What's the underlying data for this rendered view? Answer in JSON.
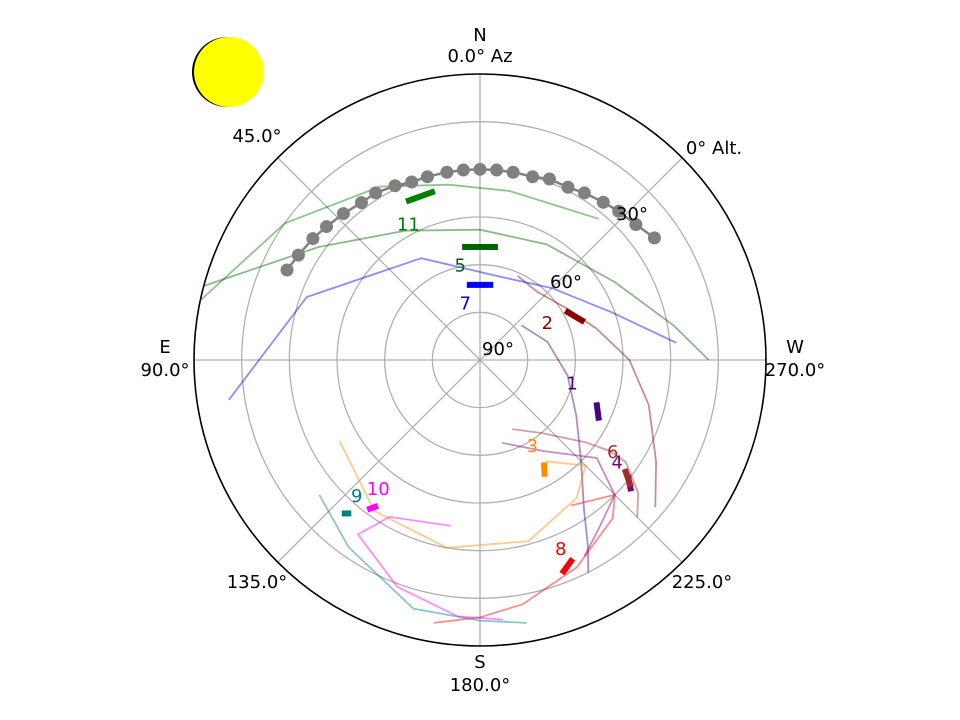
{
  "chart_data": {
    "type": "polar-skyplot",
    "title": "",
    "direction_labels": {
      "N": "N",
      "E": "E",
      "S": "S",
      "W": "W",
      "n_deg": "0.0° Az",
      "e_deg": "90.0°",
      "s_deg": "180.0°",
      "w_deg": "270.0°"
    },
    "azimuth_labels": [
      {
        "az": 45,
        "text": "45.0°"
      },
      {
        "az": 135,
        "text": "135.0°"
      },
      {
        "az": 225,
        "text": "225.0°"
      }
    ],
    "altitude_labels": [
      {
        "alt": 0,
        "text": "0° Alt."
      },
      {
        "alt": 30,
        "text": "30°"
      },
      {
        "alt": 60,
        "text": "60°"
      },
      {
        "alt": 90,
        "text": "90°"
      }
    ],
    "altitude_rings": [
      15,
      30,
      45,
      60,
      75
    ],
    "azimuth_spokes": [
      0,
      45,
      90,
      135,
      180,
      225,
      270,
      315
    ],
    "sun_color": "#ffff00",
    "moon_track": {
      "color": "#808080",
      "points": [
        [
          305,
          23
        ],
        [
          311,
          25
        ],
        [
          317,
          26
        ],
        [
          322,
          27
        ],
        [
          328,
          28
        ],
        [
          333,
          29
        ],
        [
          339,
          29
        ],
        [
          344,
          30
        ],
        [
          350,
          30
        ],
        [
          355,
          30
        ],
        [
          0,
          30
        ],
        [
          5,
          30
        ],
        [
          10,
          30
        ],
        [
          16,
          30
        ],
        [
          21,
          30
        ],
        [
          26,
          29
        ],
        [
          32,
          28
        ],
        [
          37,
          28
        ],
        [
          43,
          27
        ],
        [
          49,
          26
        ],
        [
          54,
          25
        ],
        [
          60,
          24
        ],
        [
          65,
          23
        ]
      ]
    },
    "series": [
      {
        "name": "1",
        "color": "#4b0082",
        "track": [
          [
            310,
            73
          ],
          [
            285,
            68
          ],
          [
            260,
            62
          ],
          [
            240,
            55
          ],
          [
            225,
            45
          ],
          [
            215,
            33
          ],
          [
            210,
            22
          ],
          [
            207,
            15
          ]
        ],
        "arc": [
          [
            250,
            51
          ],
          [
            243,
            48
          ]
        ],
        "label_at": [
          255,
          60
        ]
      },
      {
        "name": "2",
        "color": "#8b0000",
        "track": [
          [
            336,
            61
          ],
          [
            320,
            62
          ],
          [
            300,
            58
          ],
          [
            285,
            52
          ],
          [
            270,
            43
          ],
          [
            255,
            35
          ],
          [
            240,
            26
          ],
          [
            230,
            18
          ]
        ],
        "arc": [
          [
            300,
            59
          ],
          [
            290,
            55
          ]
        ],
        "label_at": [
          298,
          66
        ]
      },
      {
        "name": "3",
        "color": "#ff8c00",
        "track": [
          [
            120,
            39
          ],
          [
            145,
            32
          ],
          [
            170,
            30
          ],
          [
            195,
            31
          ],
          [
            215,
            37
          ],
          [
            225,
            43
          ],
          [
            213,
            52
          ]
        ],
        "arc": [
          [
            212,
            52
          ],
          [
            209,
            48
          ]
        ],
        "label_at": [
          211,
          58
        ]
      },
      {
        "name": "4",
        "color": "#800080",
        "track": [
          [
            195,
            63
          ],
          [
            215,
            55
          ],
          [
            230,
            42
          ],
          [
            225,
            30
          ],
          [
            215,
            25
          ],
          [
            208,
            20
          ]
        ],
        "arc": [
          [
            232,
            31
          ],
          [
            229,
            27
          ]
        ],
        "label_at": [
          233,
          36
        ]
      },
      {
        "name": "5",
        "color": "#006400",
        "track": [
          [
            75,
            0
          ],
          [
            55,
            28
          ],
          [
            30,
            43
          ],
          [
            0,
            49
          ],
          [
            330,
            48
          ],
          [
            300,
            41
          ],
          [
            280,
            28
          ],
          [
            270,
            18
          ]
        ],
        "arc": [
          [
            9,
            54
          ],
          [
            351,
            54
          ]
        ],
        "label_at": [
          12,
          60
        ]
      },
      {
        "name": "6",
        "color": "#a52a2a",
        "track": [
          [
            205,
            66
          ],
          [
            220,
            60
          ],
          [
            232,
            48
          ],
          [
            235,
            40
          ],
          [
            235,
            34
          ],
          [
            230,
            25
          ],
          [
            225,
            20
          ]
        ],
        "arc": [
          [
            233,
            33
          ],
          [
            230,
            28
          ]
        ],
        "label_at": [
          235,
          39
        ]
      },
      {
        "name": "7",
        "color": "#0000ff",
        "track": [
          [
            99,
            10
          ],
          [
            70,
            32
          ],
          [
            30,
            53
          ],
          [
            350,
            63
          ],
          [
            315,
            58
          ],
          [
            290,
            46
          ],
          [
            275,
            28
          ]
        ],
        "arc": [
          [
            10,
            66
          ],
          [
            350,
            66
          ]
        ],
        "label_at": [
          15,
          72
        ]
      },
      {
        "name": "8",
        "color": "#ff0000",
        "track": [
          [
            170,
            6
          ],
          [
            180,
            9
          ],
          [
            190,
            12
          ],
          [
            205,
            18
          ],
          [
            220,
            25
          ],
          [
            225,
            30
          ],
          [
            212,
            36
          ]
        ],
        "arc": [
          [
            205,
            21
          ],
          [
            201,
            18
          ]
        ],
        "label_at": [
          203,
          25
        ]
      },
      {
        "name": "9",
        "color": "#008080",
        "track": [
          [
            130,
            24
          ],
          [
            145,
            18
          ],
          [
            165,
            9
          ],
          [
            180,
            8
          ],
          [
            190,
            6
          ]
        ],
        "arc": [
          [
            140,
            27
          ],
          [
            138,
            25
          ]
        ],
        "label_at": [
          138,
          32
        ]
      },
      {
        "name": "10",
        "color": "#ff00ff",
        "track": [
          [
            170,
            37
          ],
          [
            150,
            33
          ],
          [
            145,
            23
          ],
          [
            160,
            14
          ],
          [
            175,
            9
          ],
          [
            185,
            8
          ]
        ],
        "arc": [
          [
            145,
            34
          ],
          [
            143,
            31
          ]
        ],
        "label_at": [
          142,
          38
        ]
      },
      {
        "name": "11",
        "color": "#008000",
        "track": [
          [
            78,
            0
          ],
          [
            55,
            15
          ],
          [
            30,
            27
          ],
          [
            10,
            34
          ],
          [
            350,
            36
          ],
          [
            320,
            32
          ]
        ],
        "arc": [
          [
            25,
            35
          ],
          [
            15,
            35
          ]
        ],
        "label_at": [
          28,
          42
        ]
      }
    ]
  }
}
